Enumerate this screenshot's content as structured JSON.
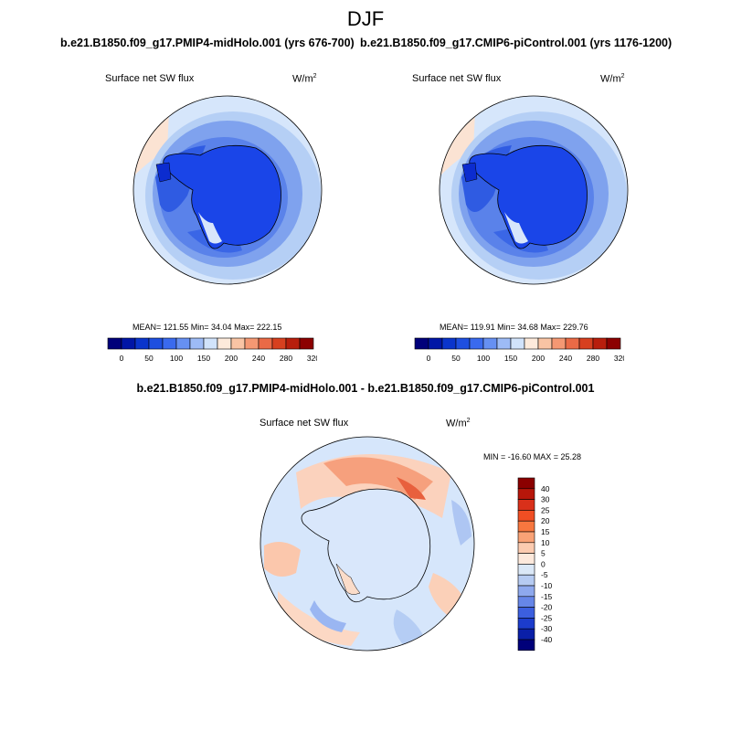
{
  "title": "DJF",
  "panels": [
    {
      "case": "b.e21.B1850.f09_g17.PMIP4-midHolo.001 (yrs 676-700)",
      "variable": "Surface net SW flux",
      "units": "W/m",
      "units_exp": "2",
      "stats": "MEAN= 121.55  Min=  34.04  Max= 222.15"
    },
    {
      "case": "b.e21.B1850.f09_g17.CMIP6-piControl.001 (yrs 1176-1200)",
      "variable": "Surface net SW flux",
      "units": "W/m",
      "units_exp": "2",
      "stats": "MEAN= 119.91  Min=  34.68  Max= 229.76"
    }
  ],
  "horizontal_colorbar": {
    "colors": [
      "#00007a",
      "#0016a6",
      "#0a35cc",
      "#1e4fe0",
      "#3a6aee",
      "#6690f2",
      "#9dbbf6",
      "#d1e3fb",
      "#fdeadb",
      "#f9c4a4",
      "#f49873",
      "#ea6a46",
      "#d7401f",
      "#b81e0c",
      "#8c0000"
    ],
    "tick_labels": [
      "0",
      "50",
      "100",
      "150",
      "200",
      "240",
      "280",
      "320"
    ]
  },
  "difference": {
    "title": "b.e21.B1850.f09_g17.PMIP4-midHolo.001 - b.e21.B1850.f09_g17.CMIP6-piControl.001",
    "variable": "Surface net SW flux",
    "units": "W/m",
    "units_exp": "2",
    "stats": "MIN = -16.60 MAX =  25.28",
    "colorbar": {
      "colors_top_to_bottom": [
        "#8b0000",
        "#b7160a",
        "#d9301a",
        "#f04e23",
        "#f7773f",
        "#f9a276",
        "#fccbb0",
        "#fde9dc",
        "#dbe8f7",
        "#b6cbf2",
        "#8ea9ee",
        "#6686e8",
        "#3c5fdf",
        "#1c3ccc",
        "#0a1fa8",
        "#00007a"
      ],
      "tick_labels": [
        "40",
        "30",
        "25",
        "20",
        "15",
        "10",
        "5",
        "0",
        "-5",
        "-10",
        "-15",
        "-20",
        "-25",
        "-30",
        "-40"
      ]
    }
  }
}
